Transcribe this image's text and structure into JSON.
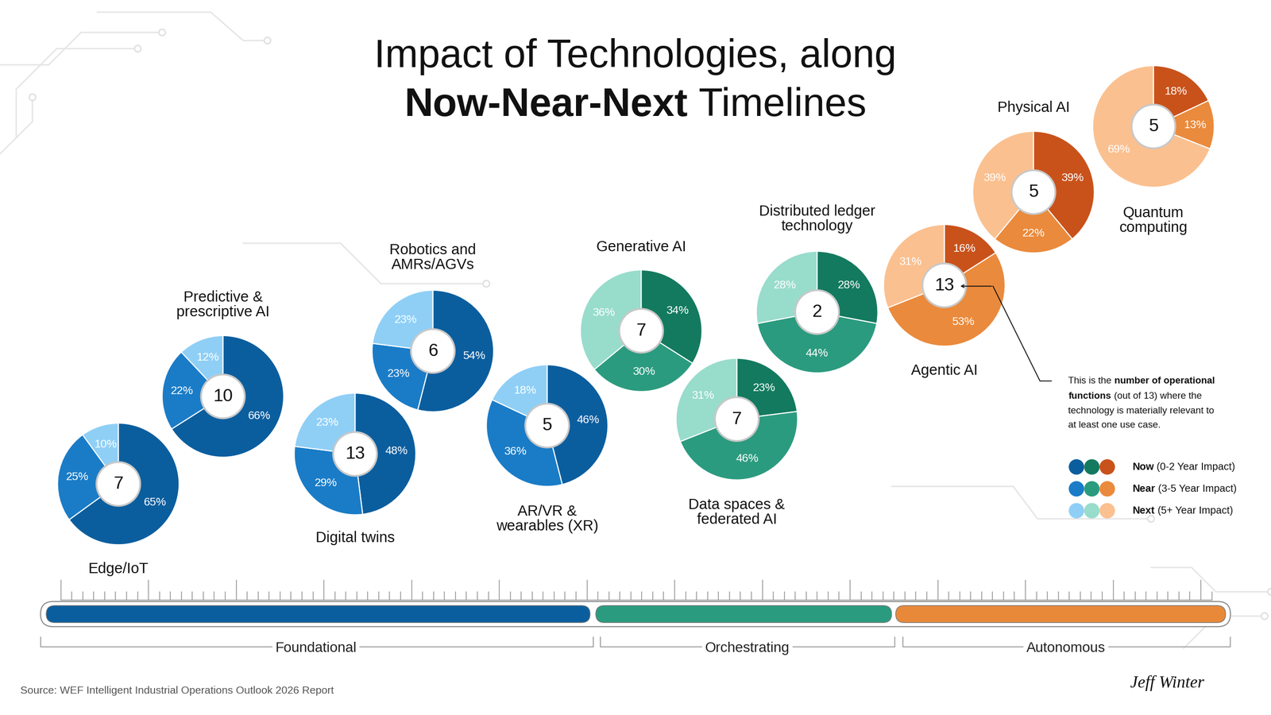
{
  "title": {
    "lines": [
      [
        {
          "text": "Impact of Technologies, along",
          "bold": false
        }
      ],
      [
        {
          "text": "Now-Near-Next",
          "bold": true
        },
        {
          "text": " Timelines",
          "bold": false
        }
      ]
    ]
  },
  "chart_data": [
    {
      "type": "pie",
      "title": "Edge/IoT",
      "center_label": 7,
      "categories": [
        "Now",
        "Near",
        "Next"
      ],
      "values": [
        65,
        25,
        10
      ],
      "value_labels": [
        "65%",
        "25%",
        "10%"
      ],
      "colors": [
        "#0b5e9e",
        "#1a7cc7",
        "#8fcff6"
      ],
      "data_labels": true
    },
    {
      "type": "pie",
      "title": "Predictive &\nprescriptive AI",
      "center_label": 10,
      "categories": [
        "Now",
        "Near",
        "Next"
      ],
      "values": [
        66,
        22,
        12
      ],
      "value_labels": [
        "66%",
        "22%",
        "12%"
      ],
      "colors": [
        "#0b5e9e",
        "#1a7cc7",
        "#8fcff6"
      ],
      "data_labels": true
    },
    {
      "type": "pie",
      "title": "Digital twins",
      "center_label": 13,
      "categories": [
        "Now",
        "Near",
        "Next"
      ],
      "values": [
        48,
        29,
        23
      ],
      "value_labels": [
        "48%",
        "29%",
        "23%"
      ],
      "colors": [
        "#0b5e9e",
        "#1a7cc7",
        "#8fcff6"
      ],
      "data_labels": true
    },
    {
      "type": "pie",
      "title": "Robotics and\nAMRs/AGVs",
      "center_label": 6,
      "categories": [
        "Now",
        "Near",
        "Next"
      ],
      "values": [
        54,
        23,
        23
      ],
      "value_labels": [
        "54%",
        "23%",
        "23%"
      ],
      "colors": [
        "#0b5e9e",
        "#1a7cc7",
        "#8fcff6"
      ],
      "data_labels": true
    },
    {
      "type": "pie",
      "title": "AR/VR &\nwearables (XR)",
      "center_label": 5,
      "categories": [
        "Now",
        "Near",
        "Next"
      ],
      "values": [
        46,
        36,
        18
      ],
      "value_labels": [
        "46%",
        "36%",
        "18%"
      ],
      "colors": [
        "#0b5e9e",
        "#1a7cc7",
        "#8fcff6"
      ],
      "data_labels": true
    },
    {
      "type": "pie",
      "title": "Generative AI",
      "center_label": 7,
      "categories": [
        "Now",
        "Near",
        "Next"
      ],
      "values": [
        34,
        30,
        36
      ],
      "value_labels": [
        "34%",
        "30%",
        "36%"
      ],
      "colors": [
        "#137a5f",
        "#2b9b7f",
        "#98dccc"
      ],
      "data_labels": true
    },
    {
      "type": "pie",
      "title": "Data spaces &\nfederated AI",
      "center_label": 7,
      "categories": [
        "Now",
        "Near",
        "Next"
      ],
      "values": [
        23,
        46,
        31
      ],
      "value_labels": [
        "23%",
        "46%",
        "31%"
      ],
      "colors": [
        "#137a5f",
        "#2b9b7f",
        "#98dccc"
      ],
      "data_labels": true
    },
    {
      "type": "pie",
      "title": "Distributed ledger\ntechnology",
      "center_label": 2,
      "categories": [
        "Now",
        "Near",
        "Next"
      ],
      "values": [
        28,
        44,
        28
      ],
      "value_labels": [
        "28%",
        "44%",
        "28%"
      ],
      "colors": [
        "#137a5f",
        "#2b9b7f",
        "#98dccc"
      ],
      "data_labels": true
    },
    {
      "type": "pie",
      "title": "Agentic AI",
      "center_label": 13,
      "categories": [
        "Now",
        "Near",
        "Next"
      ],
      "values": [
        16,
        53,
        31
      ],
      "value_labels": [
        "16%",
        "53%",
        "31%"
      ],
      "colors": [
        "#c9521b",
        "#ea8a3c",
        "#fbc08f"
      ],
      "data_labels": true
    },
    {
      "type": "pie",
      "title": "Physical AI",
      "center_label": 5,
      "categories": [
        "Now",
        "Near",
        "Next"
      ],
      "values": [
        39,
        22,
        39
      ],
      "value_labels": [
        "39%",
        "22%",
        "39%"
      ],
      "colors": [
        "#c9521b",
        "#ea8a3c",
        "#fbc08f"
      ],
      "data_labels": true
    },
    {
      "type": "pie",
      "title": "Quantum\ncomputing",
      "center_label": 5,
      "categories": [
        "Now",
        "Near",
        "Next"
      ],
      "values": [
        18,
        13,
        69
      ],
      "value_labels": [
        "18%",
        "13%",
        "69%"
      ],
      "colors": [
        "#c9521b",
        "#ea8a3c",
        "#fbc08f"
      ],
      "data_labels": true
    }
  ],
  "note": {
    "lines": [
      [
        {
          "text": "This is the ",
          "bold": false
        },
        {
          "text": "number of operational",
          "bold": true
        }
      ],
      [
        {
          "text": "functions",
          "bold": true
        },
        {
          "text": " (out of 13) where the",
          "bold": false
        }
      ],
      [
        {
          "text": "technology is materially relevant to",
          "bold": false
        }
      ],
      [
        {
          "text": "at least one use case.",
          "bold": false
        }
      ]
    ]
  },
  "key": {
    "entries": [
      {
        "name": "Now",
        "detail": "(0-2 Year Impact)",
        "colors": [
          "#0b5e9e",
          "#137a5f",
          "#c9521b"
        ]
      },
      {
        "name": "Near",
        "detail": "(3-5 Year Impact)",
        "colors": [
          "#1a7cc7",
          "#2b9b7f",
          "#ea8a3c"
        ]
      },
      {
        "name": "Next",
        "detail": "(5+ Year Impact)",
        "colors": [
          "#8fcff6",
          "#98dccc",
          "#fbc08f"
        ]
      }
    ]
  },
  "phases": [
    {
      "name": "Foundational",
      "color": "#0b5e9e"
    },
    {
      "name": "Orchestrating",
      "color": "#2b9b7f"
    },
    {
      "name": "Autonomous",
      "color": "#e8893a"
    }
  ],
  "source": "Source: WEF Intelligent Industrial Operations Outlook 2026 Report",
  "signature": "Jeff Winter"
}
